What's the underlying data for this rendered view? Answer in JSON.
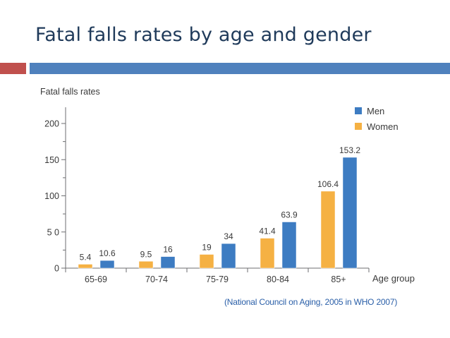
{
  "slide": {
    "title": "Fatal falls rates by age and gender",
    "source": "(National Council on Aging, 2005 in WHO 2007)",
    "colors": {
      "accent_red": "#c0504d",
      "accent_blue": "#4f81bd"
    }
  },
  "chart_data": {
    "type": "bar",
    "title": "",
    "ylabel": "Fatal falls rates",
    "xlabel": "Age group",
    "categories": [
      "65-69",
      "70-74",
      "75-79",
      "80-84",
      "85+"
    ],
    "ylim": [
      0,
      220
    ],
    "yticks": [
      0,
      50,
      100,
      150,
      200
    ],
    "ytick_labels": [
      "0",
      "5 0",
      "100",
      "150",
      "200"
    ],
    "grid": false,
    "legend_position": "top-right",
    "series": [
      {
        "name": "Women",
        "color": "#f5b143",
        "values": [
          5.4,
          9.5,
          19,
          41.4,
          106.4
        ],
        "labels": [
          "5.4",
          "9.5",
          "19",
          "41.4",
          "106.4"
        ]
      },
      {
        "name": "Men",
        "color": "#3d7cc2",
        "values": [
          10.6,
          16,
          34,
          63.9,
          153.2
        ],
        "labels": [
          "10.6",
          "16",
          "34",
          "63.9",
          "153.2"
        ]
      }
    ],
    "legend_order": [
      "Men",
      "Women"
    ]
  }
}
